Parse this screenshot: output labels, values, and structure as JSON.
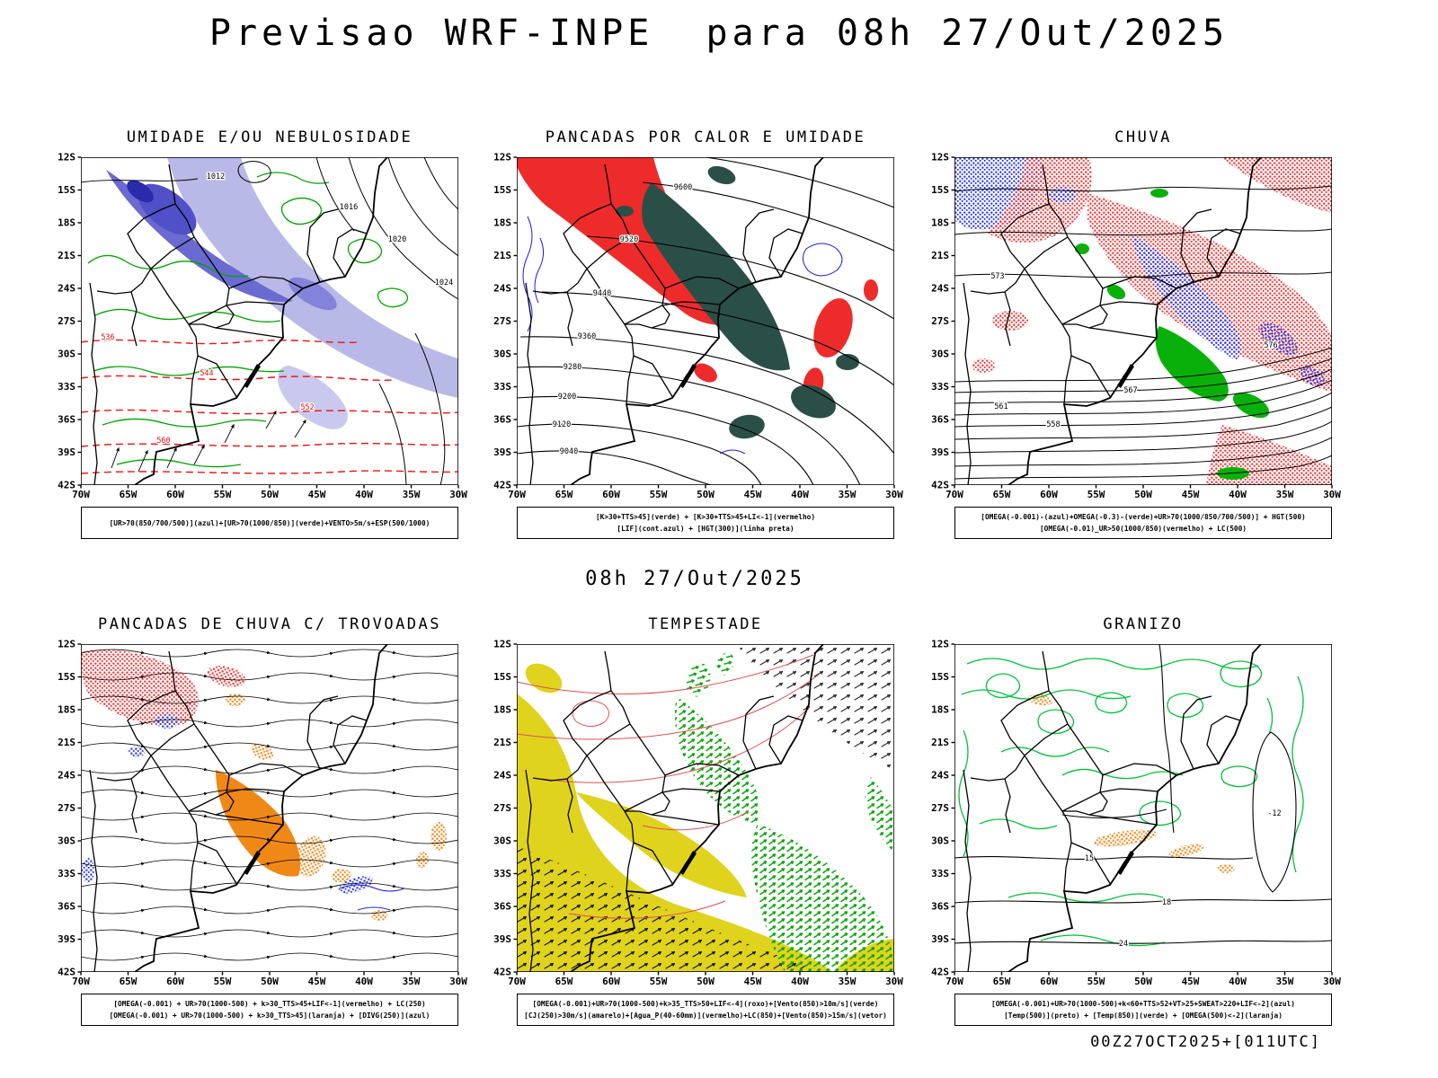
{
  "page": {
    "title": "Previsao WRF-INPE  para 08h 27/Out/2025",
    "subtitle": "08h 27/Out/2025",
    "footer": "00Z27OCT2025+[011UTC]"
  },
  "axes": {
    "lat": [
      "12S",
      "15S",
      "18S",
      "21S",
      "24S",
      "27S",
      "30S",
      "33S",
      "36S",
      "39S",
      "42S"
    ],
    "lon": [
      "70W",
      "65W",
      "60W",
      "55W",
      "50W",
      "45W",
      "40W",
      "35W",
      "30W"
    ]
  },
  "panels": [
    {
      "title": "UMIDADE E/OU NEBULOSIDADE",
      "legend": [
        "[UR>70(850/700/500)](azul)+[UR>70(1000/850)](verde)+VENTO>5m/s+ESP(500/1000)"
      ],
      "map_labels": [
        "1012",
        "1016",
        "1020",
        "1024",
        "536",
        "544",
        "552",
        "560"
      ]
    },
    {
      "title": "PANCADAS POR CALOR E UMIDADE",
      "legend": [
        "[K>30+TTS>45](verde) + [K>30+TTS>45+LI<-1](vermelho)",
        "[LIF](cont.azul) + [HGT(300)](linha preta)"
      ],
      "map_labels": [
        "9600",
        "9520",
        "9440",
        "9360",
        "9280",
        "9200",
        "9120",
        "9040"
      ]
    },
    {
      "title": "CHUVA",
      "legend": [
        "[OMEGA(-0.001)-(azul)+OMEGA(-0.3)-(verde)+UR>70(1000/850/700/500)] + HGT(500)",
        "[OMEGA(-0.01)_UR>50(1000/850)(vermelho) + LC(500)"
      ],
      "map_labels": [
        "573",
        "576",
        "567",
        "558",
        "561"
      ]
    },
    {
      "title": "PANCADAS DE CHUVA C/ TROVOADAS",
      "legend": [
        "[OMEGA(-0.001) + UR>70(1000-500) + k>30_TTS>45+LIF<-1](vermelho) + LC(250)",
        "[OMEGA(-0.001) + UR>70(1000-500) + k>30_TTS>45](laranja) + [DIVG(250)](azul)"
      ],
      "map_labels": []
    },
    {
      "title": "TEMPESTADE",
      "legend": [
        "[OMEGA(-0.001)+UR>70(1000-500)+k>35_TTS>50+LIF<-4](roxo)+[Vento(850)>10m/s](verde)",
        "[CJ(250)>30m/s](amarelo)+[Agua_P(40-60mm)](vermelho)+LC(850)+[Vento(850)>15m/s](vetor)"
      ],
      "map_labels": []
    },
    {
      "title": "GRANIZO",
      "legend": [
        "[OMEGA(-0.001)+UR>70(1000-500)+k<60+TTS>52+VT>25+SWEAT>220+LIF<-2](azul)",
        "[Temp(500)](preto) + [Temp(850)](verde) + [OMEGA(500)<-2](laranja)"
      ],
      "map_labels": [
        "-12",
        "15",
        "18",
        "24"
      ]
    }
  ]
}
